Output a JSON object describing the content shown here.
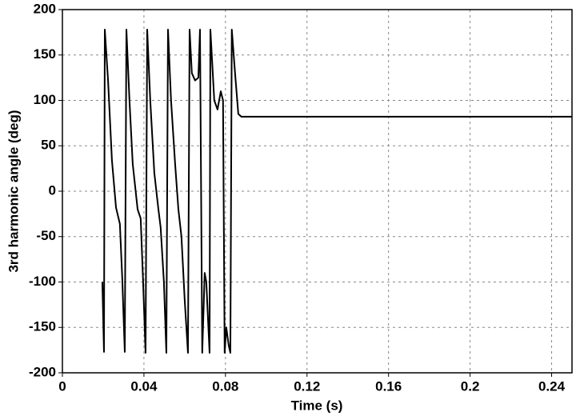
{
  "chart_data": {
    "type": "line",
    "x_label": "Time (s)",
    "y_label": "3rd harmonic angle (deg)",
    "xlim": [
      0,
      0.25
    ],
    "xticks": [
      0,
      0.04,
      0.08,
      0.12,
      0.16,
      0.2,
      0.24
    ],
    "ylim": [
      -200,
      200
    ],
    "yticks": [
      -200,
      -150,
      -100,
      -50,
      0,
      50,
      100,
      150,
      200
    ],
    "grid": true,
    "series": [
      {
        "color": "#000000",
        "x": [
          0.0196,
          0.0204,
          0.0208,
          0.0224,
          0.0243,
          0.0263,
          0.0282,
          0.0294,
          0.0306,
          0.0314,
          0.0329,
          0.0345,
          0.0369,
          0.0384,
          0.0396,
          0.0408,
          0.0416,
          0.0431,
          0.0451,
          0.0471,
          0.0482,
          0.0498,
          0.051,
          0.0518,
          0.0533,
          0.0553,
          0.0569,
          0.0584,
          0.06,
          0.0616,
          0.0624,
          0.0635,
          0.0651,
          0.0667,
          0.0675,
          0.0686,
          0.0698,
          0.0706,
          0.0722,
          0.0726,
          0.0745,
          0.0761,
          0.0777,
          0.0788,
          0.0796,
          0.0804,
          0.0816,
          0.0824,
          0.0831,
          0.0847,
          0.0863,
          0.0878,
          0.25
        ],
        "values": [
          -100,
          -177,
          178,
          122,
          34,
          -18,
          -36,
          -98,
          -177,
          178,
          100,
          30,
          -20,
          -30,
          -100,
          -178,
          178,
          100,
          20,
          -20,
          -40,
          -100,
          -178,
          178,
          100,
          30,
          -20,
          -50,
          -120,
          -178,
          178,
          130,
          122,
          125,
          178,
          -178,
          -90,
          -100,
          -178,
          178,
          100,
          90,
          110,
          100,
          -178,
          -150,
          -170,
          -178,
          178,
          130,
          85,
          82,
          82
        ]
      }
    ]
  }
}
